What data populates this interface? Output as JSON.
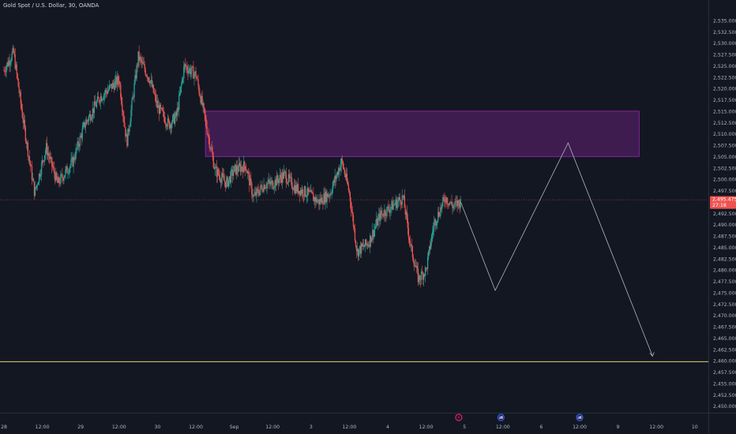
{
  "chart_data": {
    "type": "candlestick",
    "title": "Gold Spot / U.S. Dollar, 30, OANDA",
    "ylim": [
      2448.5,
      2539.5
    ],
    "y_ticks": [
      "2,535.000",
      "2,532.500",
      "2,530.000",
      "2,527.500",
      "2,525.000",
      "2,522.500",
      "2,520.000",
      "2,517.500",
      "2,515.000",
      "2,512.500",
      "2,510.000",
      "2,507.500",
      "2,505.000",
      "2,502.500",
      "2,500.000",
      "2,497.500",
      "2,492.500",
      "2,490.000",
      "2,487.500",
      "2,485.000",
      "2,482.500",
      "2,480.000",
      "2,477.500",
      "2,475.000",
      "2,472.500",
      "2,470.000",
      "2,467.500",
      "2,465.000",
      "2,462.500",
      "2,460.000",
      "2,457.500",
      "2,455.000",
      "2,452.500",
      "2,450.000"
    ],
    "x_ticks": [
      {
        "label": "28",
        "x": 0
      },
      {
        "label": "12:00",
        "x": 1
      },
      {
        "label": "29",
        "x": 2
      },
      {
        "label": "12:00",
        "x": 3
      },
      {
        "label": "30",
        "x": 4
      },
      {
        "label": "12:00",
        "x": 5
      },
      {
        "label": "Sep",
        "x": 6
      },
      {
        "label": "12:00",
        "x": 7
      },
      {
        "label": "3",
        "x": 8
      },
      {
        "label": "12:00",
        "x": 9
      },
      {
        "label": "4",
        "x": 10
      },
      {
        "label": "12:00",
        "x": 11
      },
      {
        "label": "5",
        "x": 12
      },
      {
        "label": "12:00",
        "x": 13
      },
      {
        "label": "6",
        "x": 14
      },
      {
        "label": "12:00",
        "x": 15
      },
      {
        "label": "9",
        "x": 16
      },
      {
        "label": "12:00",
        "x": 17
      },
      {
        "label": "10",
        "x": 18
      }
    ],
    "price_path": [
      [
        0.0,
        2524
      ],
      [
        0.25,
        2528
      ],
      [
        0.5,
        2513
      ],
      [
        0.8,
        2497
      ],
      [
        1.1,
        2507
      ],
      [
        1.4,
        2499
      ],
      [
        1.8,
        2504
      ],
      [
        2.1,
        2512
      ],
      [
        2.5,
        2518
      ],
      [
        3.0,
        2522
      ],
      [
        3.2,
        2508
      ],
      [
        3.5,
        2527
      ],
      [
        3.8,
        2522
      ],
      [
        4.0,
        2516
      ],
      [
        4.3,
        2512
      ],
      [
        4.5,
        2514
      ],
      [
        4.7,
        2525
      ],
      [
        5.0,
        2523
      ],
      [
        5.2,
        2515
      ],
      [
        5.5,
        2502
      ],
      [
        5.8,
        2499
      ],
      [
        6.0,
        2502
      ],
      [
        6.3,
        2503
      ],
      [
        6.5,
        2496
      ],
      [
        6.8,
        2499
      ],
      [
        7.0,
        2499
      ],
      [
        7.3,
        2501
      ],
      [
        7.6,
        2498
      ],
      [
        7.9,
        2497
      ],
      [
        8.2,
        2495
      ],
      [
        8.5,
        2497
      ],
      [
        8.8,
        2504
      ],
      [
        9.0,
        2497
      ],
      [
        9.2,
        2484
      ],
      [
        9.5,
        2486
      ],
      [
        9.8,
        2492
      ],
      [
        10.1,
        2494
      ],
      [
        10.4,
        2496
      ],
      [
        10.6,
        2485
      ],
      [
        10.8,
        2478
      ],
      [
        11.0,
        2480
      ],
      [
        11.2,
        2490
      ],
      [
        11.5,
        2496
      ],
      [
        11.7,
        2494
      ],
      [
        11.9,
        2495
      ]
    ],
    "last_price": {
      "label": "2,495.475",
      "countdown": "27:18",
      "value": 2495.475
    },
    "supply_zone": {
      "x_start": 5.25,
      "x_end": 16.55,
      "y_low": 2505.0,
      "y_high": 2515.0,
      "color": "#9c27b0"
    },
    "projection_path": [
      [
        11.9,
        2495
      ],
      [
        12.8,
        2475.5
      ],
      [
        14.7,
        2508
      ],
      [
        16.9,
        2461
      ]
    ],
    "support_line": {
      "value": 2459.8,
      "color": "#fff176"
    },
    "event_markers": [
      {
        "x": 11.85,
        "icon": "earnings-icon",
        "color": "#e91e63"
      },
      {
        "x": 12.95,
        "icon": "us-flag-icon",
        "color": "#2962ff"
      },
      {
        "x": 15.0,
        "icon": "us-flag-icon",
        "color": "#2962ff"
      }
    ],
    "colors": {
      "up": "#26a69a",
      "down": "#ef5350",
      "background": "#131722",
      "axis_text": "#b2b5be",
      "grid": "#1e222d"
    }
  }
}
